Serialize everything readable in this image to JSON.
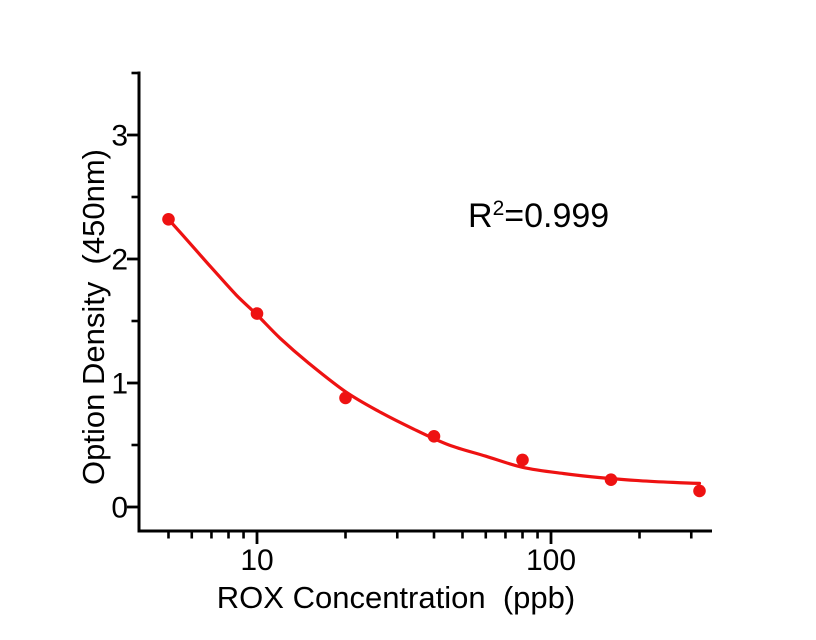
{
  "figure": {
    "background_color": "#ffffff",
    "accent_color": "#ee1212",
    "text_color": "#000000",
    "annotation": {
      "base": "R",
      "sup": "2",
      "rest": "=0.999"
    },
    "x_axis": {
      "title": "ROX Concentration  (ppb)",
      "scale": "log",
      "min": 4,
      "max": 355,
      "major_ticks": [
        10,
        100
      ],
      "major_tick_labels": [
        "10",
        "100"
      ],
      "minor_ticks": [
        5,
        6,
        7,
        8,
        9,
        20,
        30,
        40,
        50,
        60,
        70,
        80,
        90,
        200,
        300
      ]
    },
    "y_axis": {
      "title": "Option Density  (450nm)",
      "scale": "linear",
      "min": -0.2,
      "max": 3.5,
      "major_ticks": [
        0,
        1,
        2,
        3
      ],
      "major_tick_labels": [
        "0",
        "1",
        "2",
        "3"
      ],
      "minor_ticks": [
        0.5,
        1.5,
        2.5,
        3.5
      ]
    }
  },
  "chart_data": {
    "type": "scatter",
    "title": "",
    "xlabel": "ROX Concentration (ppb)",
    "ylabel": "Option Density (450nm)",
    "x_scale": "log",
    "y_scale": "linear",
    "xlim": [
      4,
      355
    ],
    "ylim": [
      -0.2,
      3.5
    ],
    "grid": false,
    "legend": "none",
    "annotation": "R²=0.999",
    "series": [
      {
        "name": "standard points",
        "type": "scatter",
        "marker": "circle",
        "color": "#ee1212",
        "x": [
          5,
          10,
          20,
          40,
          80,
          160,
          320
        ],
        "y": [
          2.32,
          1.56,
          0.88,
          0.57,
          0.38,
          0.22,
          0.13
        ]
      },
      {
        "name": "4-parameter logistic fit curve",
        "type": "line",
        "color": "#ee1212",
        "x": [
          5,
          6,
          7,
          8.5,
          10,
          12,
          15,
          20,
          26,
          34,
          45,
          60,
          80,
          110,
          150,
          200,
          260,
          320
        ],
        "y": [
          2.32,
          2.11,
          1.93,
          1.71,
          1.55,
          1.36,
          1.16,
          0.93,
          0.77,
          0.63,
          0.5,
          0.41,
          0.32,
          0.27,
          0.235,
          0.212,
          0.198,
          0.19
        ]
      }
    ]
  }
}
